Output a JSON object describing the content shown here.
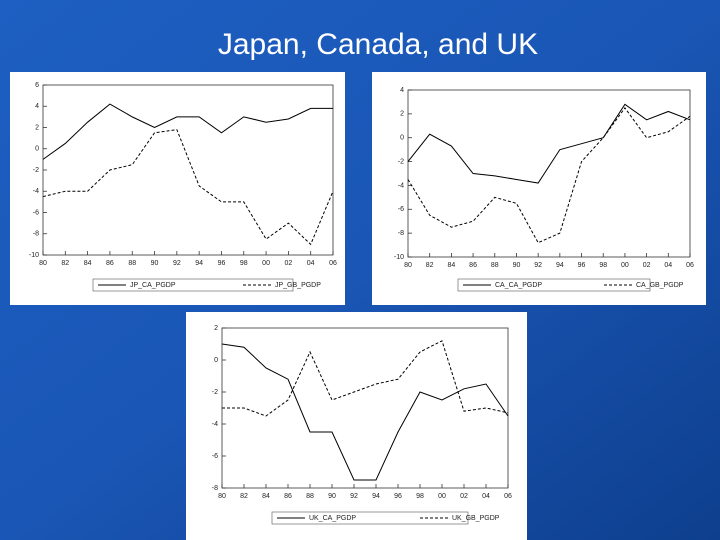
{
  "title": "Japan, Canada, and UK",
  "chart_data": [
    {
      "type": "line",
      "categories": [
        "80",
        "82",
        "84",
        "86",
        "88",
        "90",
        "92",
        "94",
        "96",
        "98",
        "00",
        "02",
        "04",
        "06"
      ],
      "ylim": [
        -10,
        6
      ],
      "yticks": [
        -10,
        -8,
        -6,
        -4,
        -2,
        0,
        2,
        4,
        6
      ],
      "series": [
        {
          "name": "JP_CA_PGDP",
          "color": "#000000",
          "style": "solid",
          "values": [
            -1,
            0.5,
            2.5,
            4.2,
            3,
            2,
            3,
            3,
            1.5,
            3,
            2.5,
            2.8,
            3.8,
            3.8
          ]
        },
        {
          "name": "JP_GB_PGDP",
          "color": "#000000",
          "style": "dashed",
          "values": [
            -4.5,
            -4,
            -4,
            -2,
            -1.5,
            1.5,
            1.8,
            -3.5,
            -5,
            -5,
            -8.5,
            -7,
            -9,
            -4
          ]
        }
      ]
    },
    {
      "type": "line",
      "categories": [
        "80",
        "82",
        "84",
        "86",
        "88",
        "90",
        "92",
        "94",
        "96",
        "98",
        "00",
        "02",
        "04",
        "06"
      ],
      "ylim": [
        -10,
        4
      ],
      "yticks": [
        -10,
        -8,
        -6,
        -4,
        -2,
        0,
        2,
        4
      ],
      "series": [
        {
          "name": "CA_CA_PGDP",
          "color": "#000000",
          "style": "solid",
          "values": [
            -2,
            0.3,
            -0.7,
            -3,
            -3.2,
            -3.5,
            -3.8,
            -1,
            -0.5,
            0,
            2.8,
            1.5,
            2.2,
            1.5
          ]
        },
        {
          "name": "CA_GB_PGDP",
          "color": "#000000",
          "style": "dashed",
          "values": [
            -3.5,
            -6.5,
            -7.5,
            -7,
            -5,
            -5.5,
            -8.8,
            -8,
            -2,
            0,
            2.5,
            0,
            0.5,
            1.8
          ]
        }
      ]
    },
    {
      "type": "line",
      "categories": [
        "80",
        "82",
        "84",
        "86",
        "88",
        "90",
        "92",
        "94",
        "96",
        "98",
        "00",
        "02",
        "04",
        "06"
      ],
      "ylim": [
        -8,
        2
      ],
      "yticks": [
        -8,
        -6,
        -4,
        -2,
        0,
        2
      ],
      "series": [
        {
          "name": "UK_CA_PGDP",
          "color": "#000000",
          "style": "solid",
          "values": [
            1,
            0.8,
            -0.5,
            -1.2,
            -4.5,
            -4.5,
            -7.5,
            -7.5,
            -4.5,
            -2,
            -2.5,
            -1.8,
            -1.5,
            -3.5
          ]
        },
        {
          "name": "UK_GB_PGDP",
          "color": "#000000",
          "style": "dashed",
          "values": [
            -3,
            -3,
            -3.5,
            -2.5,
            0.5,
            -2.5,
            -2,
            -1.5,
            -1.2,
            0.5,
            1.2,
            -3.2,
            -3,
            -3.3
          ]
        }
      ]
    }
  ]
}
